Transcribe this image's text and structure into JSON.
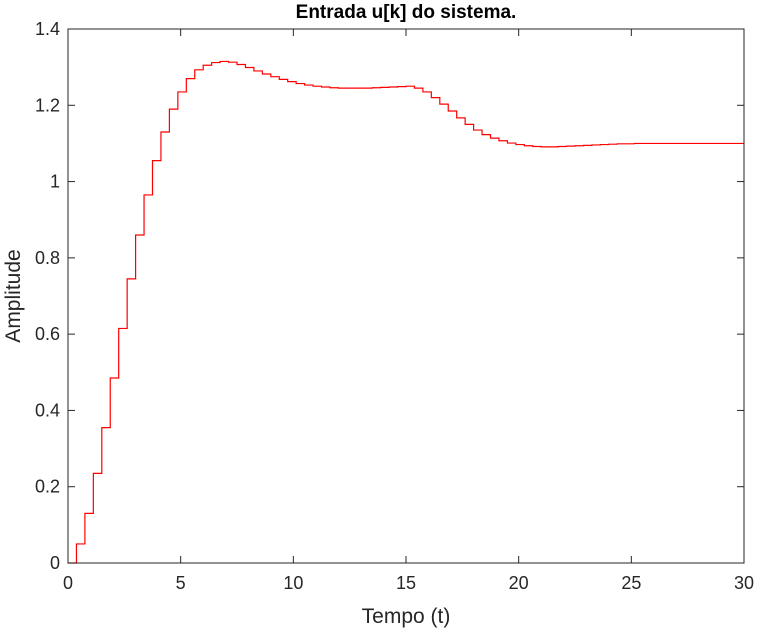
{
  "chart_data": {
    "type": "line",
    "title": "Entrada u[k] do sistema.",
    "xlabel": "Tempo (t)",
    "ylabel": "Amplitude",
    "xlim": [
      0,
      30
    ],
    "ylim": [
      0,
      1.4
    ],
    "grid": false,
    "step": true,
    "sample_time": 0.375,
    "x_ticks": [
      0,
      5,
      10,
      15,
      20,
      25,
      30
    ],
    "x_tick_labels": [
      "0",
      "5",
      "10",
      "15",
      "20",
      "25",
      "30"
    ],
    "y_ticks": [
      0,
      0.2,
      0.4,
      0.6,
      0.8,
      1.0,
      1.2,
      1.4
    ],
    "y_tick_labels": [
      "0",
      "0.2",
      "0.4",
      "0.6",
      "0.8",
      "1",
      "1.2",
      "1.4"
    ],
    "series": [
      {
        "color": "#ff0000",
        "x": [
          0,
          0.375,
          0.75,
          1.125,
          1.5,
          1.875,
          2.25,
          2.625,
          3.0,
          3.375,
          3.75,
          4.125,
          4.5,
          4.875,
          5.25,
          5.625,
          6.0,
          6.375,
          6.75,
          7.125,
          7.5,
          7.875,
          8.25,
          8.625,
          9.0,
          9.375,
          9.75,
          10.125,
          10.5,
          10.875,
          11.25,
          11.625,
          12.0,
          12.375,
          12.75,
          13.125,
          13.5,
          13.875,
          14.25,
          14.625,
          15.0,
          15.375,
          15.75,
          16.125,
          16.5,
          16.875,
          17.25,
          17.625,
          18.0,
          18.375,
          18.75,
          19.125,
          19.5,
          19.875,
          20.25,
          20.625,
          21.0,
          21.375,
          21.75,
          22.125,
          22.5,
          22.875,
          23.25,
          23.625,
          24.0,
          24.375,
          24.75,
          25.125,
          25.5,
          25.875,
          26.25,
          26.625,
          27.0,
          27.375,
          27.75,
          28.125,
          28.5,
          28.875,
          29.25,
          29.625,
          30.0
        ],
        "values": [
          0,
          0.05,
          0.13,
          0.235,
          0.355,
          0.485,
          0.615,
          0.745,
          0.86,
          0.965,
          1.055,
          1.13,
          1.19,
          1.235,
          1.27,
          1.293,
          1.305,
          1.312,
          1.315,
          1.313,
          1.307,
          1.299,
          1.29,
          1.282,
          1.275,
          1.268,
          1.262,
          1.257,
          1.253,
          1.25,
          1.248,
          1.246,
          1.245,
          1.245,
          1.245,
          1.245,
          1.246,
          1.247,
          1.248,
          1.249,
          1.25,
          1.245,
          1.235,
          1.22,
          1.203,
          1.185,
          1.167,
          1.15,
          1.135,
          1.123,
          1.114,
          1.107,
          1.101,
          1.097,
          1.094,
          1.092,
          1.091,
          1.091,
          1.092,
          1.093,
          1.094,
          1.095,
          1.096,
          1.097,
          1.098,
          1.099,
          1.099,
          1.1,
          1.1,
          1.1,
          1.1,
          1.1,
          1.1,
          1.1,
          1.1,
          1.1,
          1.1,
          1.1,
          1.1,
          1.1,
          1.1
        ]
      }
    ]
  }
}
